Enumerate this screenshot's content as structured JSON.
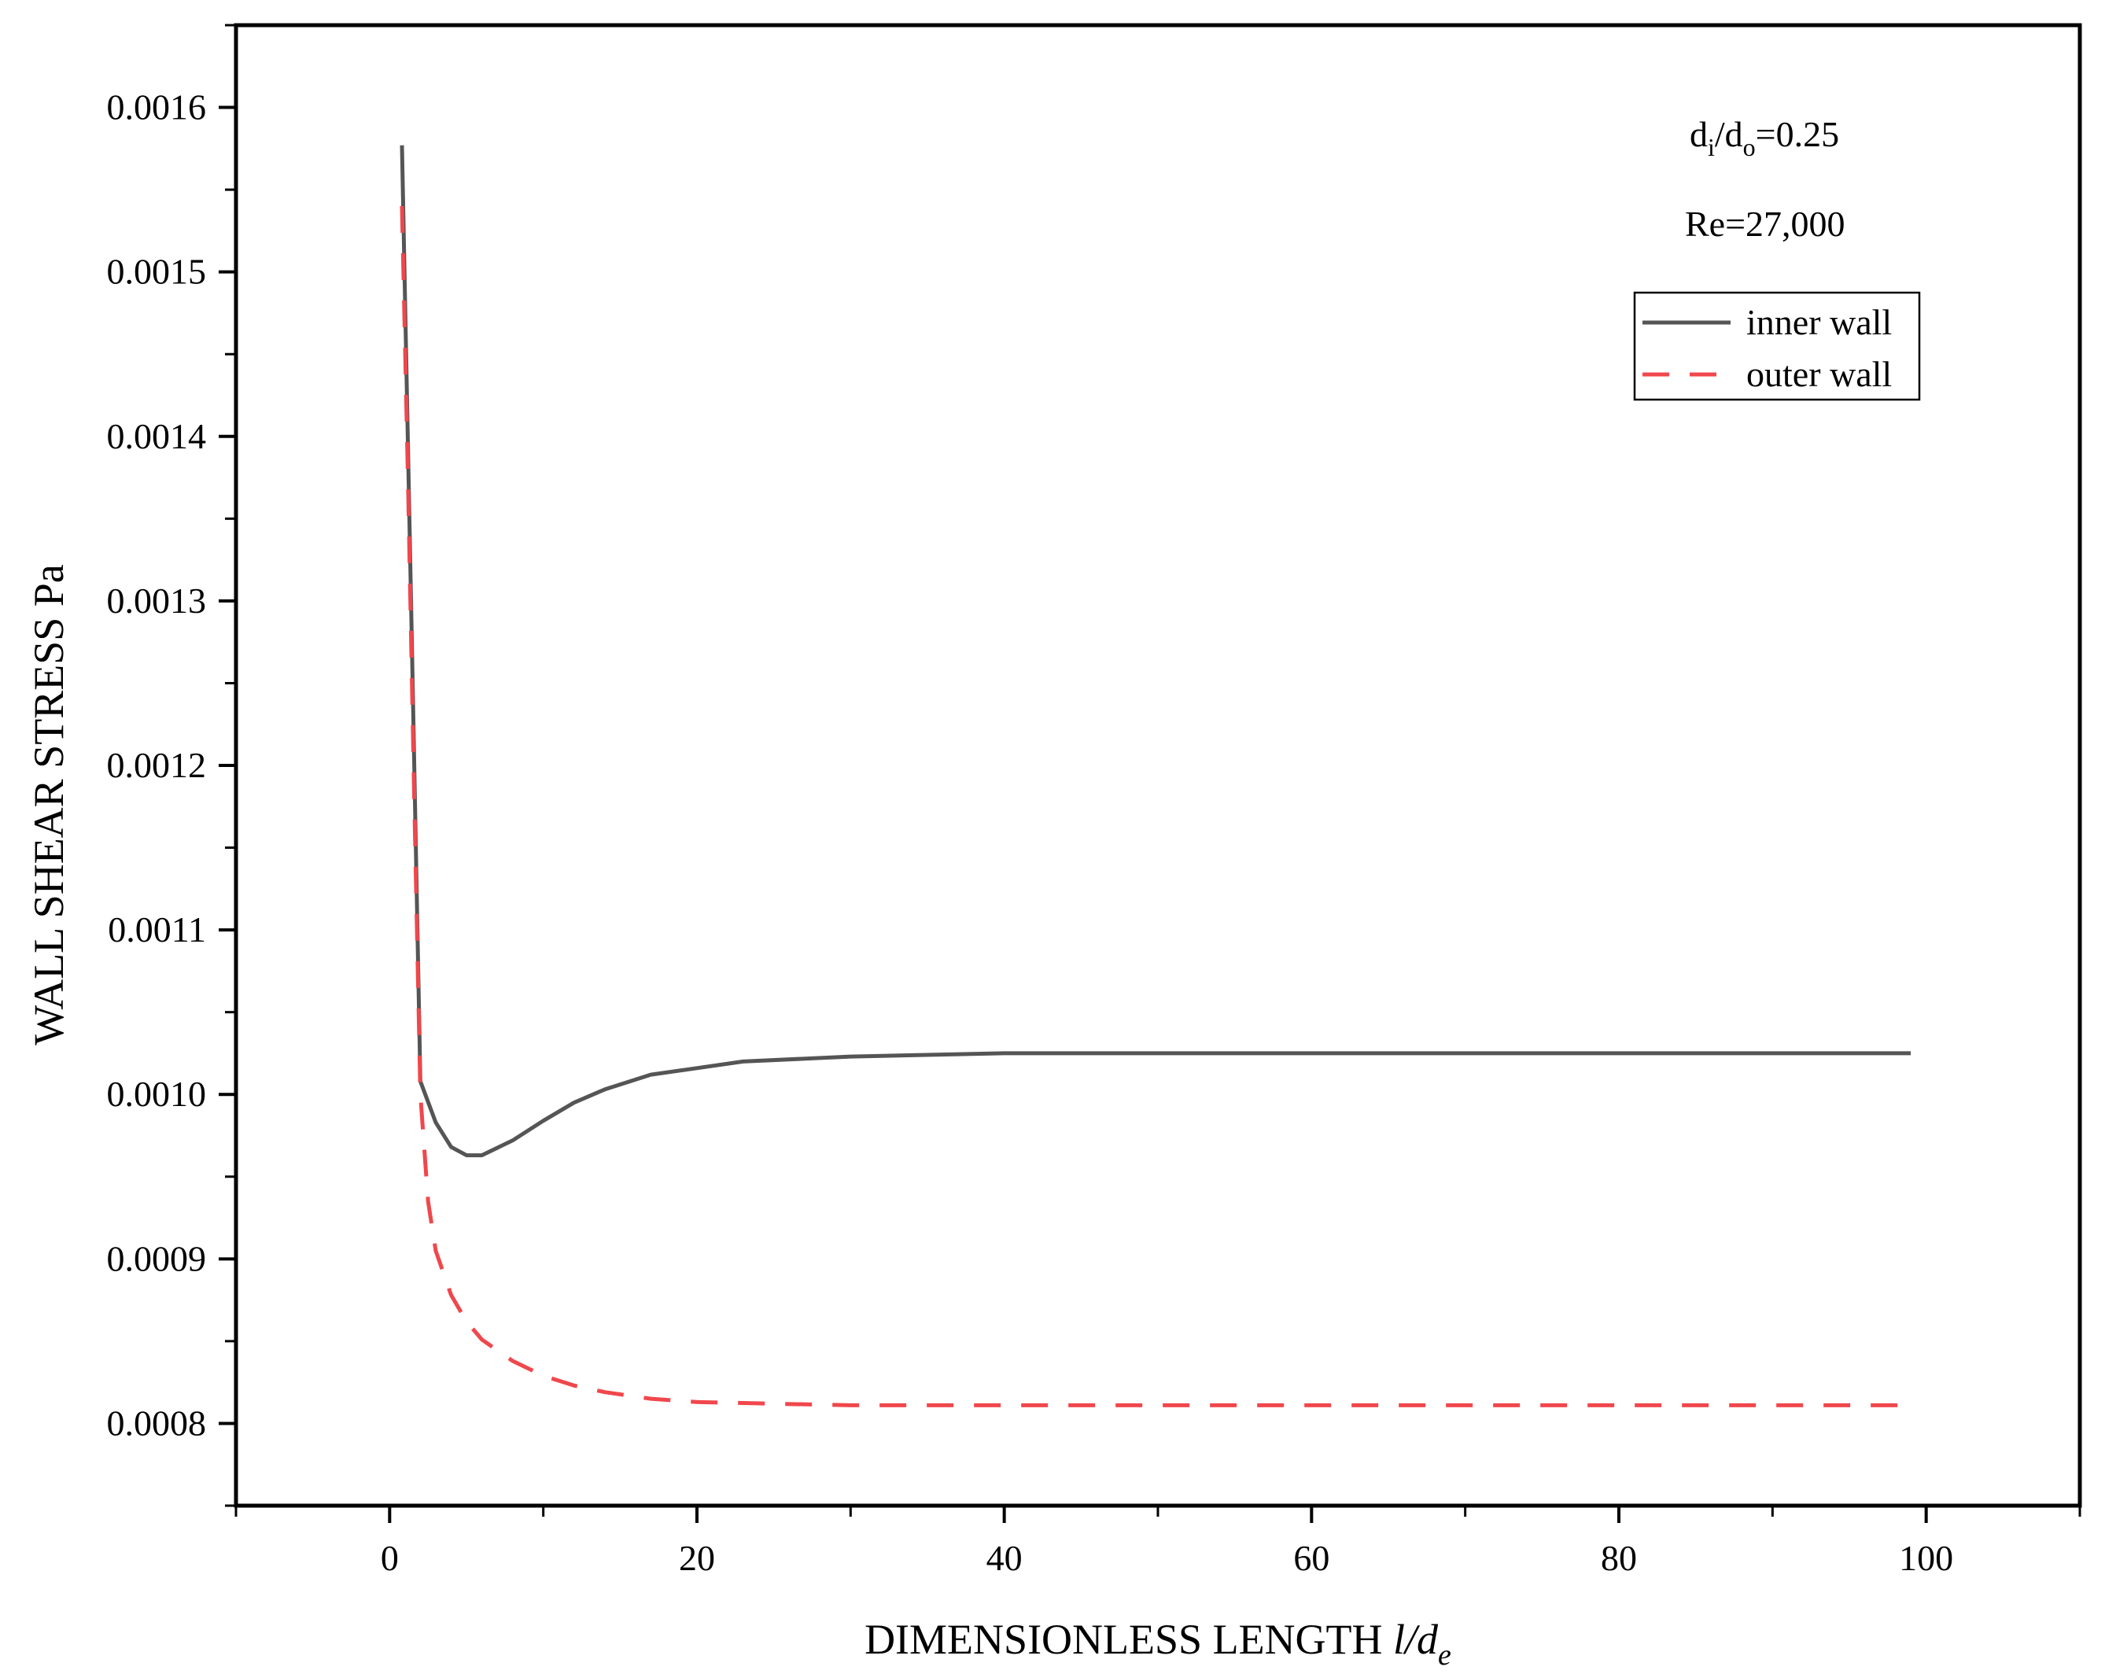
{
  "chart_data": {
    "type": "line",
    "xlabel": "DIMENSIONLESS LENGTH ",
    "xlabel_var": "l/d",
    "xlabel_sub": "e",
    "ylabel": "WALL SHEAR STRESS Pa",
    "xlim": [
      -10,
      110
    ],
    "ylim": [
      0.00075,
      0.00165
    ],
    "xticks": [
      0,
      20,
      40,
      60,
      80,
      100
    ],
    "xtick_labels": [
      "0",
      "20",
      "40",
      "60",
      "80",
      "100"
    ],
    "yticks": [
      0.0008,
      0.0009,
      0.001,
      0.0011,
      0.0012,
      0.0013,
      0.0014,
      0.0015,
      0.0016
    ],
    "ytick_labels": [
      "0.0008",
      "0.0009",
      "0.0010",
      "0.0011",
      "0.0012",
      "0.0013",
      "0.0014",
      "0.0015",
      "0.0016"
    ],
    "grid": false,
    "legend_position": "top-right",
    "annotations": {
      "ratio": {
        "d1": "d",
        "sub1": "i",
        "slash": "/d",
        "sub2": "o",
        "value": "=0.25"
      },
      "reynolds": "Re=27,000"
    },
    "series": [
      {
        "name": "inner wall",
        "color": "#555555",
        "style": "solid",
        "x": [
          0.8,
          1.5,
          2.0,
          3.0,
          4.0,
          5.0,
          6.0,
          8.0,
          10.0,
          12.0,
          14.0,
          17.0,
          20.0,
          23.0,
          30.0,
          40.0,
          50.0,
          60.0,
          70.0,
          80.0,
          90.0,
          99.0
        ],
        "y": [
          0.001577,
          0.00125,
          0.001008,
          0.000983,
          0.000968,
          0.000963,
          0.000963,
          0.000972,
          0.000984,
          0.000995,
          0.001003,
          0.001012,
          0.001016,
          0.00102,
          0.001023,
          0.001025,
          0.001025,
          0.001025,
          0.001025,
          0.001025,
          0.001025,
          0.001025
        ]
      },
      {
        "name": "outer wall",
        "color": "#f0474c",
        "style": "dashed",
        "x": [
          0.8,
          1.2,
          1.6,
          2.0,
          2.5,
          3.0,
          4.0,
          5.0,
          6.0,
          8.0,
          10.0,
          12.0,
          14.0,
          17.0,
          20.0,
          25.0,
          30.0,
          40.0,
          50.0,
          60.0,
          70.0,
          80.0,
          90.0,
          99.0
        ],
        "y": [
          0.00154,
          0.00137,
          0.00118,
          0.001,
          0.000935,
          0.000905,
          0.000878,
          0.000862,
          0.000851,
          0.000838,
          0.000829,
          0.000823,
          0.000819,
          0.000815,
          0.000813,
          0.000812,
          0.000811,
          0.000811,
          0.000811,
          0.000811,
          0.000811,
          0.000811,
          0.000811,
          0.000811
        ]
      }
    ]
  }
}
